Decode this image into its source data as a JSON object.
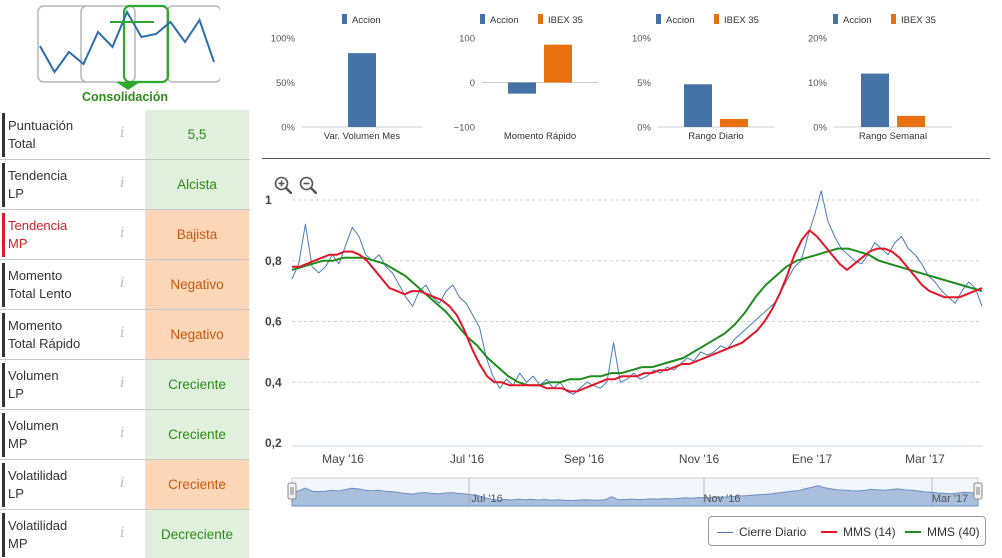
{
  "phase": {
    "label": "Consolidación",
    "colors": {
      "active": "#2ea92e",
      "inactive": "#b5b5b5",
      "line": "#2d6ea8"
    }
  },
  "indicators": [
    {
      "name_line1": "Puntuación",
      "name_line2": "Total",
      "info": "i",
      "value": "5,5",
      "status": "green",
      "highlight": false
    },
    {
      "name_line1": "Tendencia",
      "name_line2": "LP",
      "info": "i",
      "value": "Alcista",
      "status": "green",
      "highlight": false
    },
    {
      "name_line1": "Tendencia",
      "name_line2": "MP",
      "info": "i",
      "value": "Bajista",
      "status": "orange",
      "highlight": true
    },
    {
      "name_line1": "Momento",
      "name_line2": "Total Lento",
      "info": "i",
      "value": "Negativo",
      "status": "orange",
      "highlight": false
    },
    {
      "name_line1": "Momento",
      "name_line2": "Total Rápido",
      "info": "i",
      "value": "Negativo",
      "status": "orange",
      "highlight": false
    },
    {
      "name_line1": "Volumen",
      "name_line2": "LP",
      "info": "i",
      "value": "Creciente",
      "status": "green",
      "highlight": false
    },
    {
      "name_line1": "Volumen",
      "name_line2": "MP",
      "info": "i",
      "value": "Creciente",
      "status": "green",
      "highlight": false
    },
    {
      "name_line1": "Volatilidad",
      "name_line2": "LP",
      "info": "i",
      "value": "Creciente",
      "status": "orange",
      "highlight": false
    },
    {
      "name_line1": "Volatilidad",
      "name_line2": "MP",
      "info": "i",
      "value": "Decreciente",
      "status": "green",
      "highlight": false
    }
  ],
  "colors": {
    "accion": "#4572a7",
    "ibex": "#e8700f",
    "green_line": "#1e8c1e",
    "red_line": "#e3162a",
    "close_line": "#4a7ab8"
  },
  "chart_data": [
    {
      "type": "bar",
      "title": "Var. Volumen Mes",
      "legend": [
        "Accion"
      ],
      "ylim": [
        0,
        100
      ],
      "yticks": [
        "0%",
        "50%",
        "100%"
      ],
      "ytick_values": [
        0,
        50,
        100
      ],
      "series": [
        {
          "name": "Accion",
          "values": [
            83
          ]
        }
      ]
    },
    {
      "type": "bar",
      "title": "Momento Rápido",
      "legend": [
        "Accion",
        "IBEX 35"
      ],
      "ylim": [
        -100,
        100
      ],
      "yticks": [
        "−100",
        "0",
        "100"
      ],
      "ytick_values": [
        -100,
        0,
        100
      ],
      "series": [
        {
          "name": "Accion",
          "values": [
            -25
          ]
        },
        {
          "name": "IBEX 35",
          "values": [
            85
          ]
        }
      ]
    },
    {
      "type": "bar",
      "title": "Rango Diario",
      "legend": [
        "Accion",
        "IBEX 35"
      ],
      "ylim": [
        0,
        10
      ],
      "yticks": [
        "0%",
        "5%",
        "10%"
      ],
      "ytick_values": [
        0,
        5,
        10
      ],
      "series": [
        {
          "name": "Accion",
          "values": [
            4.8
          ]
        },
        {
          "name": "IBEX 35",
          "values": [
            0.9
          ]
        }
      ]
    },
    {
      "type": "bar",
      "title": "Rango Semanal",
      "legend": [
        "Accion",
        "IBEX 35"
      ],
      "ylim": [
        0,
        20
      ],
      "yticks": [
        "0%",
        "10%",
        "20%"
      ],
      "ytick_values": [
        0,
        10,
        20
      ],
      "series": [
        {
          "name": "Accion",
          "values": [
            12
          ]
        },
        {
          "name": "IBEX 35",
          "values": [
            2.5
          ]
        }
      ]
    },
    {
      "type": "line",
      "ylim": [
        0.2,
        1.0
      ],
      "yticks": [
        "0,2",
        "0,4",
        "0,6",
        "0,8",
        "1"
      ],
      "ytick_values": [
        0.2,
        0.4,
        0.6,
        0.8,
        1.0
      ],
      "xticks": [
        "May '16",
        "Jul '16",
        "Sep '16",
        "Nov '16",
        "Ene '17",
        "Mar '17"
      ],
      "navigator_xticks": [
        "Jul '16",
        "Nov '16",
        "Mar '17"
      ],
      "legend": [
        "Cierre Diario",
        "MMS (14)",
        "MMS (40)"
      ],
      "series": [
        {
          "name": "Cierre Diario",
          "values": [
            0.74,
            0.79,
            0.92,
            0.78,
            0.76,
            0.78,
            0.82,
            0.79,
            0.85,
            0.91,
            0.88,
            0.82,
            0.8,
            0.82,
            0.78,
            0.76,
            0.72,
            0.68,
            0.65,
            0.7,
            0.72,
            0.68,
            0.66,
            0.7,
            0.72,
            0.68,
            0.66,
            0.62,
            0.58,
            0.48,
            0.42,
            0.38,
            0.41,
            0.39,
            0.43,
            0.4,
            0.42,
            0.39,
            0.41,
            0.38,
            0.4,
            0.37,
            0.36,
            0.38,
            0.4,
            0.39,
            0.38,
            0.4,
            0.53,
            0.4,
            0.41,
            0.43,
            0.41,
            0.42,
            0.44,
            0.43,
            0.45,
            0.44,
            0.46,
            0.48,
            0.47,
            0.5,
            0.49,
            0.5,
            0.52,
            0.51,
            0.54,
            0.56,
            0.58,
            0.6,
            0.62,
            0.64,
            0.66,
            0.7,
            0.74,
            0.78,
            0.8,
            0.88,
            0.95,
            1.03,
            0.93,
            0.88,
            0.84,
            0.82,
            0.8,
            0.79,
            0.82,
            0.86,
            0.84,
            0.82,
            0.86,
            0.88,
            0.84,
            0.82,
            0.79,
            0.75,
            0.73,
            0.7,
            0.68,
            0.66,
            0.7,
            0.73,
            0.71,
            0.65
          ]
        },
        {
          "name": "MMS (14)",
          "values": [
            0.78,
            0.78,
            0.79,
            0.8,
            0.81,
            0.82,
            0.82,
            0.83,
            0.83,
            0.82,
            0.8,
            0.77,
            0.74,
            0.71,
            0.7,
            0.69,
            0.7,
            0.7,
            0.69,
            0.68,
            0.67,
            0.65,
            0.62,
            0.57,
            0.51,
            0.46,
            0.42,
            0.4,
            0.4,
            0.39,
            0.39,
            0.39,
            0.39,
            0.39,
            0.38,
            0.38,
            0.38,
            0.37,
            0.37,
            0.38,
            0.39,
            0.4,
            0.41,
            0.41,
            0.42,
            0.42,
            0.42,
            0.43,
            0.43,
            0.44,
            0.44,
            0.45,
            0.46,
            0.46,
            0.47,
            0.48,
            0.49,
            0.5,
            0.51,
            0.52,
            0.53,
            0.55,
            0.57,
            0.6,
            0.64,
            0.69,
            0.75,
            0.82,
            0.87,
            0.9,
            0.88,
            0.85,
            0.82,
            0.79,
            0.77,
            0.79,
            0.81,
            0.83,
            0.84,
            0.84,
            0.83,
            0.81,
            0.78,
            0.75,
            0.72,
            0.7,
            0.69,
            0.68,
            0.68,
            0.68,
            0.69,
            0.7,
            0.71
          ]
        },
        {
          "name": "MMS (40)",
          "values": [
            0.77,
            0.78,
            0.79,
            0.8,
            0.8,
            0.81,
            0.81,
            0.81,
            0.8,
            0.79,
            0.77,
            0.75,
            0.72,
            0.69,
            0.66,
            0.63,
            0.59,
            0.55,
            0.52,
            0.48,
            0.45,
            0.42,
            0.4,
            0.39,
            0.39,
            0.4,
            0.4,
            0.41,
            0.41,
            0.42,
            0.42,
            0.43,
            0.43,
            0.44,
            0.45,
            0.45,
            0.46,
            0.47,
            0.48,
            0.5,
            0.52,
            0.54,
            0.56,
            0.59,
            0.63,
            0.68,
            0.72,
            0.75,
            0.78,
            0.8,
            0.81,
            0.82,
            0.83,
            0.84,
            0.84,
            0.83,
            0.82,
            0.8,
            0.79,
            0.78,
            0.77,
            0.76,
            0.75,
            0.74,
            0.73,
            0.72,
            0.71,
            0.7
          ]
        }
      ]
    }
  ]
}
